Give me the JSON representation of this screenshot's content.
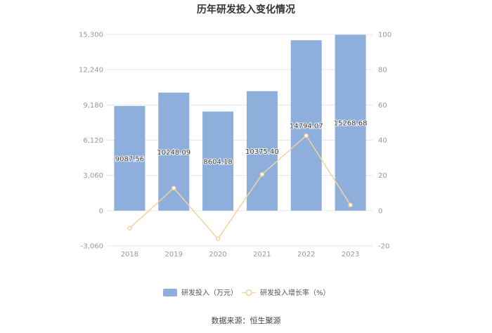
{
  "chart_data": {
    "type": "bar",
    "title": "历年研发投入变化情况",
    "categories": [
      "2018",
      "2019",
      "2020",
      "2021",
      "2022",
      "2023"
    ],
    "series": [
      {
        "name": "研发投入（万元）",
        "type": "bar",
        "axis": "left",
        "values": [
          9087.56,
          10248.09,
          8604.18,
          10375.4,
          14794.07,
          15268.68
        ],
        "labels": [
          "9087.56",
          "10248.09",
          "8604.18",
          "10375.40",
          "14794.07",
          "15268.68"
        ],
        "color": "#8eaedb"
      },
      {
        "name": "研发投入增长率（%）",
        "type": "line",
        "axis": "right",
        "values": [
          -10,
          12.8,
          -16.0,
          20.6,
          42.6,
          3.2
        ],
        "color": "#f5d29e"
      }
    ],
    "y_left": {
      "ylim": [
        -3060,
        15300
      ],
      "ticks": [
        -3060,
        0,
        3060,
        6120,
        9180,
        12240,
        15300
      ],
      "tick_labels": [
        "-3,060",
        "0",
        "3,060",
        "6,120",
        "9,180",
        "12,240",
        "15,300"
      ]
    },
    "y_right": {
      "ylim": [
        -20,
        100
      ],
      "ticks": [
        -20,
        0,
        20,
        40,
        60,
        80,
        100
      ],
      "tick_labels": [
        "-20",
        "0",
        "20",
        "40",
        "60",
        "80",
        "100"
      ]
    },
    "grid": true,
    "legend_position": "bottom"
  },
  "source_text": "数据来源：恒生聚源"
}
